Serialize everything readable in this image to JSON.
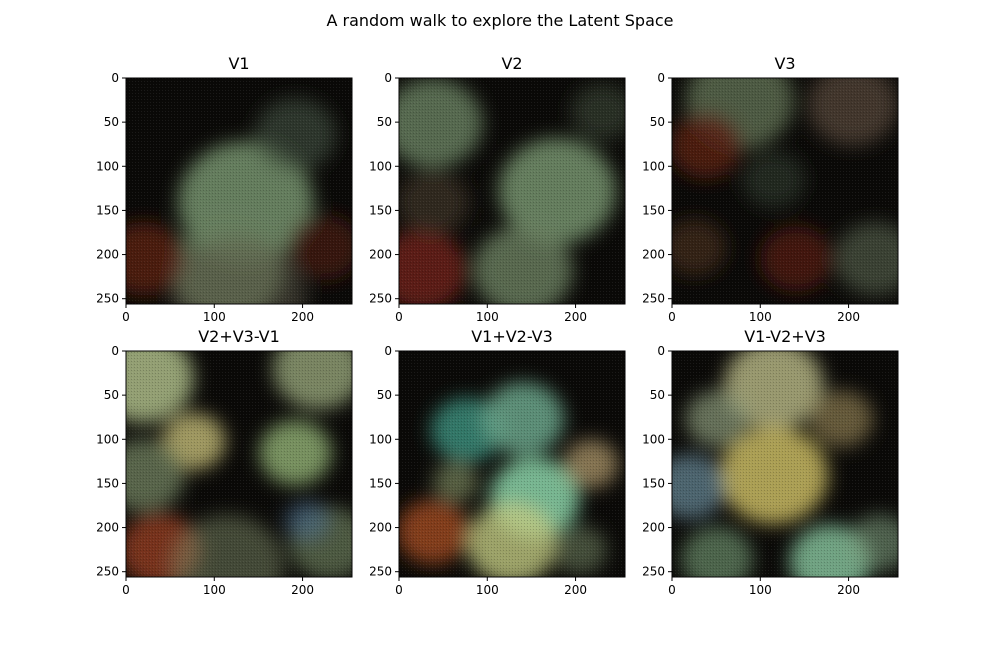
{
  "figure": {
    "suptitle": "A random walk to explore the Latent Space"
  },
  "chart_data": [
    {
      "type": "heatmap",
      "title": "V1",
      "xlim": [
        0,
        256
      ],
      "ylim": [
        256,
        0
      ],
      "xticks": [
        0,
        100,
        200
      ],
      "yticks": [
        0,
        50,
        100,
        150,
        200,
        250
      ],
      "image": {
        "background": "#0a0907",
        "blobs": [
          {
            "cx": 0.53,
            "cy": 0.55,
            "r": 0.3,
            "color": "#6e8a66",
            "a": 0.9
          },
          {
            "cx": 0.45,
            "cy": 0.85,
            "r": 0.25,
            "color": "#687e5e",
            "a": 0.8
          },
          {
            "cx": 0.75,
            "cy": 0.25,
            "r": 0.18,
            "color": "#3d4a3a",
            "a": 0.7
          },
          {
            "cx": 0.08,
            "cy": 0.8,
            "r": 0.18,
            "color": "#5a1e14",
            "a": 0.8
          },
          {
            "cx": 0.88,
            "cy": 0.75,
            "r": 0.16,
            "color": "#4a1a14",
            "a": 0.7
          },
          {
            "cx": 0.5,
            "cy": 0.97,
            "r": 0.3,
            "color": "#5e5a4a",
            "a": 0.5
          }
        ]
      }
    },
    {
      "type": "heatmap",
      "title": "V2",
      "xlim": [
        0,
        256
      ],
      "ylim": [
        256,
        0
      ],
      "xticks": [
        0,
        100,
        200
      ],
      "yticks": [
        0,
        50,
        100,
        150,
        200,
        250
      ],
      "image": {
        "background": "#0a0907",
        "blobs": [
          {
            "cx": 0.15,
            "cy": 0.2,
            "r": 0.22,
            "color": "#5e7458",
            "a": 0.9
          },
          {
            "cx": 0.7,
            "cy": 0.5,
            "r": 0.26,
            "color": "#6e8a66",
            "a": 0.9
          },
          {
            "cx": 0.55,
            "cy": 0.85,
            "r": 0.22,
            "color": "#6a8060",
            "a": 0.8
          },
          {
            "cx": 0.1,
            "cy": 0.85,
            "r": 0.2,
            "color": "#6a2014",
            "a": 0.85
          },
          {
            "cx": 0.15,
            "cy": 0.55,
            "r": 0.16,
            "color": "#4a3a2e",
            "a": 0.6
          },
          {
            "cx": 0.9,
            "cy": 0.15,
            "r": 0.14,
            "color": "#3a4838",
            "a": 0.6
          }
        ]
      }
    },
    {
      "type": "heatmap",
      "title": "V3",
      "xlim": [
        0,
        256
      ],
      "ylim": [
        256,
        0
      ],
      "xticks": [
        0,
        100,
        200
      ],
      "yticks": [
        0,
        50,
        100,
        150,
        200,
        250
      ],
      "image": {
        "background": "#0a0907",
        "blobs": [
          {
            "cx": 0.3,
            "cy": 0.1,
            "r": 0.24,
            "color": "#5e6e52",
            "a": 0.8
          },
          {
            "cx": 0.8,
            "cy": 0.12,
            "r": 0.2,
            "color": "#5a4a3a",
            "a": 0.7
          },
          {
            "cx": 0.15,
            "cy": 0.3,
            "r": 0.16,
            "color": "#5a1e14",
            "a": 0.8
          },
          {
            "cx": 0.9,
            "cy": 0.8,
            "r": 0.18,
            "color": "#4e5a46",
            "a": 0.7
          },
          {
            "cx": 0.55,
            "cy": 0.8,
            "r": 0.16,
            "color": "#5a1e14",
            "a": 0.7
          },
          {
            "cx": 0.45,
            "cy": 0.45,
            "r": 0.14,
            "color": "#3a4636",
            "a": 0.5
          },
          {
            "cx": 0.1,
            "cy": 0.75,
            "r": 0.14,
            "color": "#4e3020",
            "a": 0.6
          }
        ]
      }
    },
    {
      "type": "heatmap",
      "title": "V2+V3-V1",
      "xlim": [
        0,
        256
      ],
      "ylim": [
        256,
        0
      ],
      "xticks": [
        0,
        100,
        200
      ],
      "yticks": [
        0,
        50,
        100,
        150,
        200,
        250
      ],
      "image": {
        "background": "#0a0907",
        "blobs": [
          {
            "cx": 0.08,
            "cy": 0.12,
            "r": 0.22,
            "color": "#9aa878",
            "a": 0.95
          },
          {
            "cx": 0.85,
            "cy": 0.08,
            "r": 0.2,
            "color": "#8c9a72",
            "a": 0.85
          },
          {
            "cx": 0.3,
            "cy": 0.4,
            "r": 0.14,
            "color": "#b8b070",
            "a": 0.85
          },
          {
            "cx": 0.75,
            "cy": 0.45,
            "r": 0.16,
            "color": "#8aa86e",
            "a": 0.85
          },
          {
            "cx": 0.08,
            "cy": 0.55,
            "r": 0.18,
            "color": "#6a7a5a",
            "a": 0.8
          },
          {
            "cx": 0.15,
            "cy": 0.88,
            "r": 0.18,
            "color": "#8a3a1c",
            "a": 0.85
          },
          {
            "cx": 0.9,
            "cy": 0.85,
            "r": 0.18,
            "color": "#6a7a5a",
            "a": 0.7
          },
          {
            "cx": 0.8,
            "cy": 0.75,
            "r": 0.1,
            "color": "#4a6a8a",
            "a": 0.6
          },
          {
            "cx": 0.45,
            "cy": 0.95,
            "r": 0.25,
            "color": "#7e8a66",
            "a": 0.5
          }
        ]
      }
    },
    {
      "type": "heatmap",
      "title": "V1+V2-V3",
      "xlim": [
        0,
        256
      ],
      "ylim": [
        256,
        0
      ],
      "xticks": [
        0,
        100,
        200
      ],
      "yticks": [
        0,
        50,
        100,
        150,
        200,
        250
      ],
      "image": {
        "background": "#0a0907",
        "blobs": [
          {
            "cx": 0.3,
            "cy": 0.35,
            "r": 0.16,
            "color": "#3a8a78",
            "a": 0.85
          },
          {
            "cx": 0.55,
            "cy": 0.3,
            "r": 0.18,
            "color": "#6aa48a",
            "a": 0.85
          },
          {
            "cx": 0.6,
            "cy": 0.65,
            "r": 0.2,
            "color": "#8ad4a8",
            "a": 0.85
          },
          {
            "cx": 0.5,
            "cy": 0.85,
            "r": 0.2,
            "color": "#c0c880",
            "a": 0.8
          },
          {
            "cx": 0.15,
            "cy": 0.8,
            "r": 0.16,
            "color": "#a04a20",
            "a": 0.8
          },
          {
            "cx": 0.85,
            "cy": 0.5,
            "r": 0.12,
            "color": "#b8a070",
            "a": 0.7
          },
          {
            "cx": 0.25,
            "cy": 0.58,
            "r": 0.1,
            "color": "#8a9a6a",
            "a": 0.6
          },
          {
            "cx": 0.8,
            "cy": 0.88,
            "r": 0.12,
            "color": "#6a7a5a",
            "a": 0.6
          }
        ]
      }
    },
    {
      "type": "heatmap",
      "title": "V1-V2+V3",
      "xlim": [
        0,
        256
      ],
      "ylim": [
        256,
        0
      ],
      "xticks": [
        0,
        100,
        200
      ],
      "yticks": [
        0,
        50,
        100,
        150,
        200,
        250
      ],
      "image": {
        "background": "#0a0907",
        "blobs": [
          {
            "cx": 0.45,
            "cy": 0.15,
            "r": 0.22,
            "color": "#b0b080",
            "a": 0.85
          },
          {
            "cx": 0.45,
            "cy": 0.55,
            "r": 0.24,
            "color": "#c8b860",
            "a": 0.85
          },
          {
            "cx": 0.08,
            "cy": 0.6,
            "r": 0.16,
            "color": "#6a8a9a",
            "a": 0.7
          },
          {
            "cx": 0.2,
            "cy": 0.3,
            "r": 0.14,
            "color": "#8a9a7a",
            "a": 0.7
          },
          {
            "cx": 0.75,
            "cy": 0.3,
            "r": 0.14,
            "color": "#8a7a50",
            "a": 0.7
          },
          {
            "cx": 0.7,
            "cy": 0.93,
            "r": 0.18,
            "color": "#8ac8a0",
            "a": 0.8
          },
          {
            "cx": 0.2,
            "cy": 0.92,
            "r": 0.16,
            "color": "#6a8a6a",
            "a": 0.7
          },
          {
            "cx": 0.92,
            "cy": 0.85,
            "r": 0.14,
            "color": "#7a9a7a",
            "a": 0.6
          }
        ]
      }
    }
  ]
}
